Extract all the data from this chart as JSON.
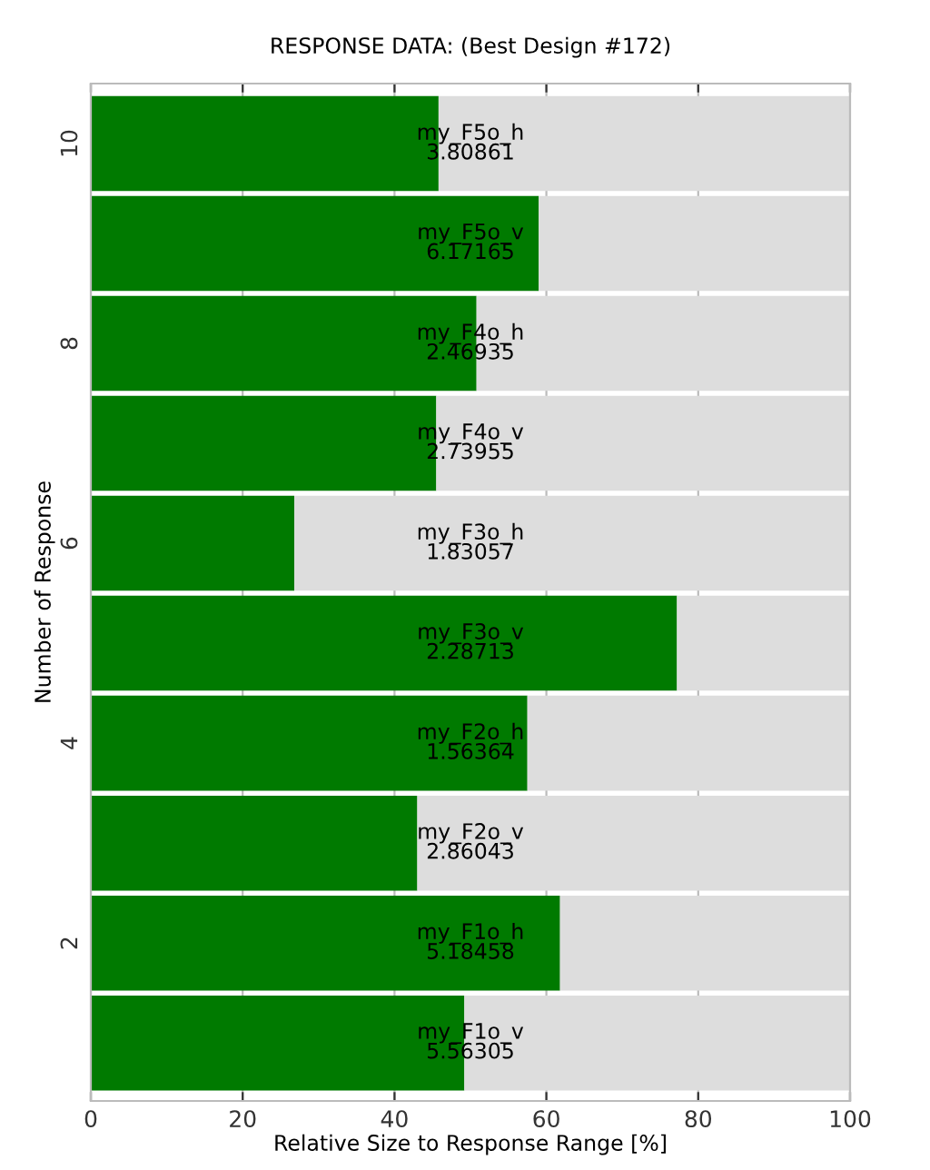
{
  "chart_data": {
    "type": "bar",
    "orientation": "horizontal",
    "stacked": true,
    "title": "RESPONSE DATA: (Best Design #172)",
    "xlabel": "Relative Size to Response Range [%]",
    "ylabel": "Number of Response",
    "x": [
      1,
      2,
      3,
      4,
      5,
      6,
      7,
      8,
      9,
      10
    ],
    "series": [
      {
        "color": "#007a00",
        "values": [
          49.2,
          61.8,
          43.0,
          57.5,
          77.2,
          26.8,
          45.5,
          50.8,
          59.0,
          45.8
        ]
      },
      {
        "color": "#dddddd",
        "values": [
          50.8,
          38.2,
          57.0,
          42.5,
          22.8,
          73.2,
          54.5,
          49.2,
          41.0,
          54.2
        ]
      }
    ],
    "annotations": [
      "my_F1o_v\n5.56305",
      "my_F1o_h\n5.18458",
      "my_F2o_v\n2.86043",
      "my_F2o_h\n1.56364",
      "my_F3o_v\n2.28713",
      "my_F3o_h\n1.83057",
      "my_F4o_v\n2.73955",
      "my_F4o_h\n2.46935",
      "my_F5o_v\n6.17165",
      "my_F5o_h\n3.80861"
    ],
    "xlim": [
      0,
      100
    ],
    "xticks": [
      0,
      20,
      40,
      60,
      80,
      100
    ],
    "ylim": [
      0.42,
      10.6
    ],
    "yticks": [
      2,
      4,
      6,
      8,
      10
    ],
    "grid": "x",
    "legend": false
  }
}
